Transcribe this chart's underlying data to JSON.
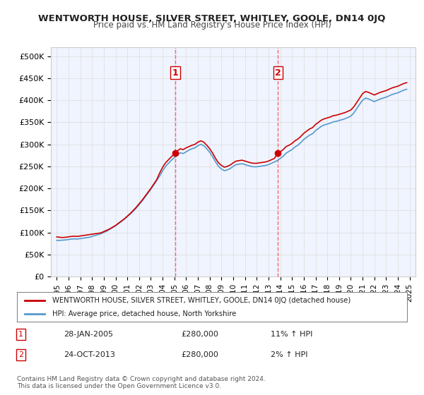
{
  "title": "WENTWORTH HOUSE, SILVER STREET, WHITLEY, GOOLE, DN14 0JQ",
  "subtitle": "Price paid vs. HM Land Registry's House Price Index (HPI)",
  "ylabel_prefix": "£",
  "yticks": [
    0,
    50000,
    100000,
    150000,
    200000,
    250000,
    300000,
    350000,
    400000,
    450000,
    500000
  ],
  "ytick_labels": [
    "£0",
    "£50K",
    "£100K",
    "£150K",
    "£200K",
    "£250K",
    "£300K",
    "£350K",
    "£400K",
    "£450K",
    "£500K"
  ],
  "ylim": [
    0,
    520000
  ],
  "xlim_start": 1994.5,
  "xlim_end": 2025.5,
  "xticks": [
    1995,
    1996,
    1997,
    1998,
    1999,
    2000,
    2001,
    2002,
    2003,
    2004,
    2005,
    2006,
    2007,
    2008,
    2009,
    2010,
    2011,
    2012,
    2013,
    2014,
    2015,
    2016,
    2017,
    2018,
    2019,
    2020,
    2021,
    2022,
    2023,
    2024,
    2025
  ],
  "grid_color": "#e0e0e0",
  "background_color": "#ffffff",
  "plot_bg_color": "#f0f4ff",
  "red_line_color": "#cc0000",
  "blue_line_color": "#5599cc",
  "vline_color": "#ff6666",
  "marker1_x": 2005.07,
  "marker1_y": 280000,
  "marker2_x": 2013.81,
  "marker2_y": 280000,
  "legend_label_red": "WENTWORTH HOUSE, SILVER STREET, WHITLEY, GOOLE, DN14 0JQ (detached house)",
  "legend_label_blue": "HPI: Average price, detached house, North Yorkshire",
  "sale1_label": "1",
  "sale1_date": "28-JAN-2005",
  "sale1_price": "£280,000",
  "sale1_hpi": "11% ↑ HPI",
  "sale2_label": "2",
  "sale2_date": "24-OCT-2013",
  "sale2_price": "£280,000",
  "sale2_hpi": "2% ↑ HPI",
  "footer_line1": "Contains HM Land Registry data © Crown copyright and database right 2024.",
  "footer_line2": "This data is licensed under the Open Government Licence v3.0.",
  "red_x": [
    1995.0,
    1995.25,
    1995.5,
    1995.75,
    1996.0,
    1996.25,
    1996.5,
    1996.75,
    1997.0,
    1997.25,
    1997.5,
    1997.75,
    1998.0,
    1998.25,
    1998.5,
    1998.75,
    1999.0,
    1999.25,
    1999.5,
    1999.75,
    2000.0,
    2000.25,
    2000.5,
    2000.75,
    2001.0,
    2001.25,
    2001.5,
    2001.75,
    2002.0,
    2002.25,
    2002.5,
    2002.75,
    2003.0,
    2003.25,
    2003.5,
    2003.75,
    2004.0,
    2004.25,
    2004.5,
    2004.75,
    2005.07,
    2005.25,
    2005.5,
    2005.75,
    2006.0,
    2006.25,
    2006.5,
    2006.75,
    2007.0,
    2007.25,
    2007.5,
    2007.75,
    2008.0,
    2008.25,
    2008.5,
    2008.75,
    2009.0,
    2009.25,
    2009.5,
    2009.75,
    2010.0,
    2010.25,
    2010.5,
    2010.75,
    2011.0,
    2011.25,
    2011.5,
    2011.75,
    2012.0,
    2012.25,
    2012.5,
    2012.75,
    2013.0,
    2013.25,
    2013.5,
    2013.81,
    2014.0,
    2014.25,
    2014.5,
    2014.75,
    2015.0,
    2015.25,
    2015.5,
    2015.75,
    2016.0,
    2016.25,
    2016.5,
    2016.75,
    2017.0,
    2017.25,
    2017.5,
    2017.75,
    2018.0,
    2018.25,
    2018.5,
    2018.75,
    2019.0,
    2019.25,
    2019.5,
    2019.75,
    2020.0,
    2020.25,
    2020.5,
    2020.75,
    2021.0,
    2021.25,
    2021.5,
    2021.75,
    2022.0,
    2022.25,
    2022.5,
    2022.75,
    2023.0,
    2023.25,
    2023.5,
    2023.75,
    2024.0,
    2024.25,
    2024.5,
    2024.75
  ],
  "red_y": [
    90000,
    89000,
    88500,
    89000,
    90000,
    91000,
    91500,
    91000,
    92000,
    93000,
    94000,
    95000,
    96000,
    97000,
    98000,
    99000,
    102000,
    105000,
    108000,
    112000,
    116000,
    121000,
    126000,
    131000,
    137000,
    143000,
    150000,
    157000,
    165000,
    173000,
    182000,
    191000,
    200000,
    210000,
    220000,
    235000,
    248000,
    258000,
    265000,
    272000,
    280000,
    285000,
    290000,
    288000,
    292000,
    295000,
    298000,
    300000,
    305000,
    308000,
    305000,
    298000,
    290000,
    280000,
    268000,
    258000,
    252000,
    248000,
    250000,
    253000,
    258000,
    262000,
    263000,
    264000,
    262000,
    260000,
    258000,
    257000,
    257000,
    258000,
    259000,
    260000,
    262000,
    265000,
    268000,
    280000,
    283000,
    288000,
    295000,
    298000,
    302000,
    308000,
    312000,
    318000,
    325000,
    330000,
    335000,
    338000,
    345000,
    350000,
    355000,
    358000,
    360000,
    362000,
    365000,
    366000,
    368000,
    370000,
    372000,
    375000,
    378000,
    385000,
    395000,
    405000,
    415000,
    420000,
    418000,
    415000,
    412000,
    415000,
    418000,
    420000,
    422000,
    425000,
    428000,
    430000,
    432000,
    435000,
    438000,
    440000
  ],
  "blue_x": [
    1995.0,
    1995.25,
    1995.5,
    1995.75,
    1996.0,
    1996.25,
    1996.5,
    1996.75,
    1997.0,
    1997.25,
    1997.5,
    1997.75,
    1998.0,
    1998.25,
    1998.5,
    1998.75,
    1999.0,
    1999.25,
    1999.5,
    1999.75,
    2000.0,
    2000.25,
    2000.5,
    2000.75,
    2001.0,
    2001.25,
    2001.5,
    2001.75,
    2002.0,
    2002.25,
    2002.5,
    2002.75,
    2003.0,
    2003.25,
    2003.5,
    2003.75,
    2004.0,
    2004.25,
    2004.5,
    2004.75,
    2005.0,
    2005.25,
    2005.5,
    2005.75,
    2006.0,
    2006.25,
    2006.5,
    2006.75,
    2007.0,
    2007.25,
    2007.5,
    2007.75,
    2008.0,
    2008.25,
    2008.5,
    2008.75,
    2009.0,
    2009.25,
    2009.5,
    2009.75,
    2010.0,
    2010.25,
    2010.5,
    2010.75,
    2011.0,
    2011.25,
    2011.5,
    2011.75,
    2012.0,
    2012.25,
    2012.5,
    2012.75,
    2013.0,
    2013.25,
    2013.5,
    2013.75,
    2014.0,
    2014.25,
    2014.5,
    2014.75,
    2015.0,
    2015.25,
    2015.5,
    2015.75,
    2016.0,
    2016.25,
    2016.5,
    2016.75,
    2017.0,
    2017.25,
    2017.5,
    2017.75,
    2018.0,
    2018.25,
    2018.5,
    2018.75,
    2019.0,
    2019.25,
    2019.5,
    2019.75,
    2020.0,
    2020.25,
    2020.5,
    2020.75,
    2021.0,
    2021.25,
    2021.5,
    2021.75,
    2022.0,
    2022.25,
    2022.5,
    2022.75,
    2023.0,
    2023.25,
    2023.5,
    2023.75,
    2024.0,
    2024.25,
    2024.5,
    2024.75
  ],
  "blue_y": [
    82000,
    82000,
    82500,
    83000,
    84000,
    85000,
    85500,
    85000,
    86000,
    87000,
    88000,
    89000,
    91000,
    93000,
    95000,
    97000,
    100000,
    103000,
    107000,
    111000,
    115000,
    120000,
    125000,
    130000,
    136000,
    142000,
    148000,
    155000,
    163000,
    171000,
    180000,
    189000,
    198000,
    208000,
    218000,
    228000,
    240000,
    250000,
    257000,
    264000,
    270000,
    276000,
    281000,
    279000,
    283000,
    287000,
    290000,
    292000,
    297000,
    300000,
    297000,
    290000,
    282000,
    272000,
    260000,
    250000,
    244000,
    240000,
    242000,
    245000,
    250000,
    254000,
    255000,
    256000,
    254000,
    252000,
    250000,
    249000,
    249000,
    250000,
    251000,
    252000,
    254000,
    257000,
    260000,
    263000,
    268000,
    273000,
    280000,
    284000,
    288000,
    294000,
    298000,
    304000,
    311000,
    316000,
    321000,
    324000,
    331000,
    336000,
    341000,
    344000,
    346000,
    348000,
    351000,
    352000,
    354000,
    356000,
    358000,
    361000,
    364000,
    371000,
    381000,
    391000,
    400000,
    405000,
    403000,
    400000,
    397000,
    400000,
    403000,
    405000,
    407000,
    410000,
    413000,
    415000,
    417000,
    420000,
    423000,
    425000
  ]
}
